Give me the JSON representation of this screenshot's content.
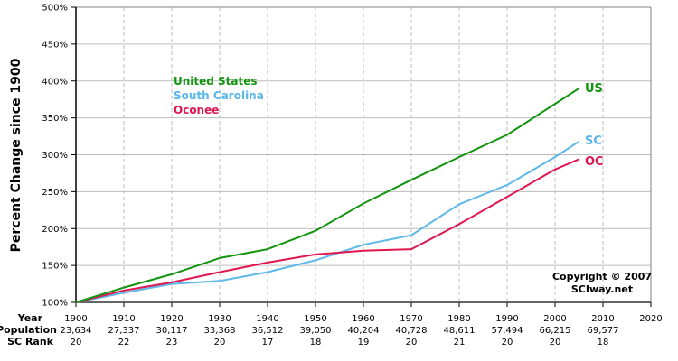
{
  "chart_data": {
    "type": "line",
    "title": "",
    "xlabel": "Year",
    "ylabel": "Percent Change since 1900",
    "ylim": [
      100,
      500
    ],
    "xlim": [
      1900,
      2020
    ],
    "grid": true,
    "yticks": [
      "100%",
      "150%",
      "200%",
      "250%",
      "300%",
      "350%",
      "400%",
      "450%",
      "500%"
    ],
    "x": [
      1900,
      1910,
      1920,
      1930,
      1940,
      1950,
      1960,
      1970,
      1980,
      1990,
      2000,
      2005
    ],
    "series": [
      {
        "name": "United States",
        "short": "US",
        "color": "#12940f",
        "values": [
          100,
          120,
          138,
          160,
          172,
          197,
          234,
          266,
          297,
          327,
          369,
          390
        ]
      },
      {
        "name": "South Carolina",
        "short": "SC",
        "color": "#5bb8e8",
        "values": [
          100,
          113,
          125,
          129,
          141,
          157,
          178,
          191,
          233,
          259,
          297,
          318
        ]
      },
      {
        "name": "Oconee",
        "short": "OC",
        "color": "#e0174f",
        "values": [
          100,
          116,
          127,
          141,
          154,
          165,
          170,
          172,
          206,
          243,
          280,
          294
        ]
      }
    ],
    "legend_position": "upper-left",
    "annotations": [
      "Copyright © 2007",
      "SCIway.net"
    ]
  },
  "table": {
    "row_headers": [
      "Year",
      "Population",
      "SC Rank"
    ],
    "years": [
      "1900",
      "1910",
      "1920",
      "1930",
      "1940",
      "1950",
      "1960",
      "1970",
      "1980",
      "1990",
      "2000",
      "2010",
      "2020"
    ],
    "population": [
      "23,634",
      "27,337",
      "30,117",
      "33,368",
      "36,512",
      "39,050",
      "40,204",
      "40,728",
      "48,611",
      "57,494",
      "66,215",
      "69,577",
      ""
    ],
    "rank": [
      "20",
      "22",
      "23",
      "20",
      "17",
      "18",
      "19",
      "20",
      "21",
      "20",
      "20",
      "18",
      ""
    ]
  },
  "legend": {
    "us": "United States",
    "sc": "South Carolina",
    "oc": "Oconee"
  },
  "labels": {
    "us": "US",
    "sc": "SC",
    "oc": "OC",
    "ylabel": "Percent Change since 1900",
    "copyright": "Copyright © 2007",
    "site": "SCIway.net"
  }
}
